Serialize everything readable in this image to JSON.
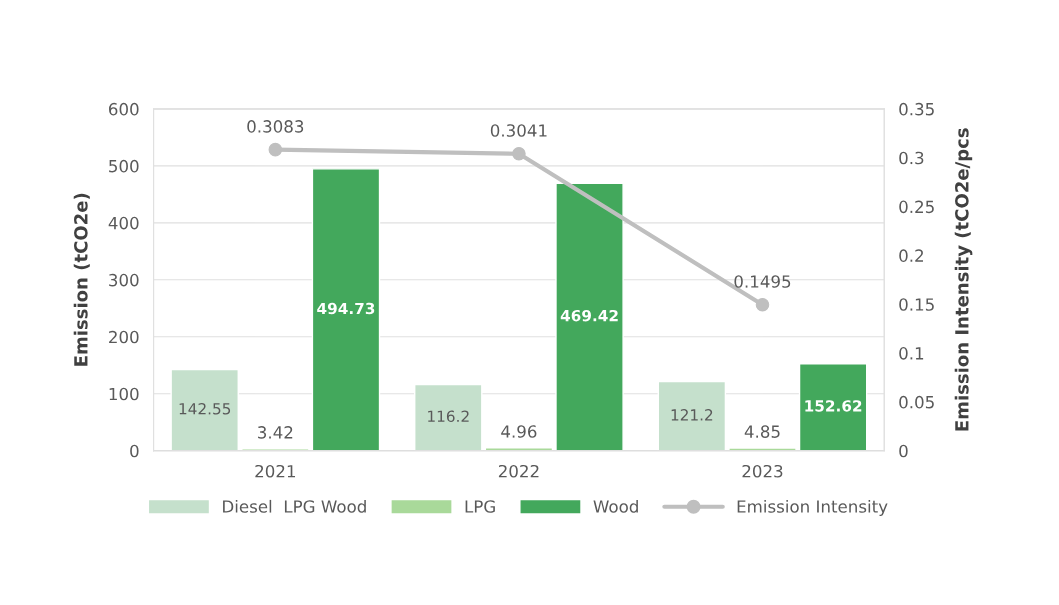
{
  "chart_data": {
    "type": "bar",
    "categories": [
      "2021",
      "2022",
      "2023"
    ],
    "ylabel": "Emission (tCO2e)",
    "y2label": "Emission Intensity (tCO2e/pcs",
    "ylim": [
      0,
      600
    ],
    "yticks": [
      0,
      100,
      200,
      300,
      400,
      500,
      600
    ],
    "y2lim": [
      0,
      0.35
    ],
    "y2ticks": [
      0,
      0.05,
      0.1,
      0.15,
      0.2,
      0.25,
      0.3,
      0.35
    ],
    "grid": "y",
    "legend": "bottom",
    "data_labels": true,
    "series": [
      {
        "name": "Diesel  LPG Wood",
        "color": "#c5e0cc",
        "values": [
          142.55,
          116.2,
          121.2
        ]
      },
      {
        "name": "LPG",
        "color": "#a9d99a",
        "values": [
          3.42,
          4.96,
          4.85
        ]
      },
      {
        "name": "Wood",
        "color": "#43a85c",
        "values": [
          494.73,
          469.42,
          152.62
        ]
      },
      {
        "name": "Emission Intensity",
        "type": "line",
        "axis": "y2",
        "color": "#bfbfbf",
        "marker": "circle",
        "values": [
          0.3083,
          0.3041,
          0.1495
        ]
      }
    ]
  }
}
